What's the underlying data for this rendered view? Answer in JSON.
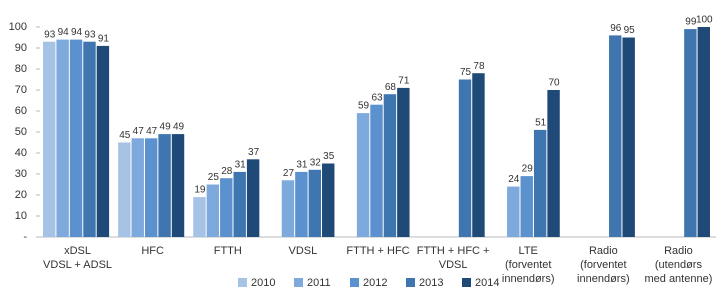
{
  "chart_data": {
    "type": "bar",
    "categories": [
      [
        "xDSL",
        "VDSL + ADSL"
      ],
      [
        "HFC"
      ],
      [
        "FTTH"
      ],
      [
        "VDSL"
      ],
      [
        "FTTH + HFC"
      ],
      [
        "FTTH + HFC +",
        "VDSL"
      ],
      [
        "LTE",
        "(forventet",
        "innendørs)"
      ],
      [
        "Radio",
        "(forventet",
        "innendørs)"
      ],
      [
        "Radio",
        "(utendørs",
        "med antenne)"
      ]
    ],
    "series": [
      {
        "name": "2010",
        "color": "#a6c3e6",
        "values": [
          93,
          45,
          19,
          null,
          null,
          null,
          null,
          null,
          null
        ]
      },
      {
        "name": "2011",
        "color": "#7ea9dc",
        "values": [
          94,
          47,
          25,
          27,
          59,
          null,
          24,
          null,
          null
        ]
      },
      {
        "name": "2012",
        "color": "#5b91cf",
        "values": [
          94,
          47,
          28,
          31,
          63,
          null,
          29,
          null,
          null
        ]
      },
      {
        "name": "2013",
        "color": "#3f76b0",
        "values": [
          93,
          49,
          31,
          32,
          68,
          75,
          51,
          96,
          99
        ]
      },
      {
        "name": "2014",
        "color": "#1f4a78",
        "values": [
          91,
          49,
          37,
          35,
          71,
          78,
          70,
          95,
          100
        ]
      }
    ],
    "ylim": [
      0,
      100
    ],
    "yticks": [
      {
        "value": 0,
        "label": "-"
      },
      10,
      20,
      30,
      40,
      50,
      60,
      70,
      80,
      90,
      100
    ],
    "legend": "bottom"
  }
}
